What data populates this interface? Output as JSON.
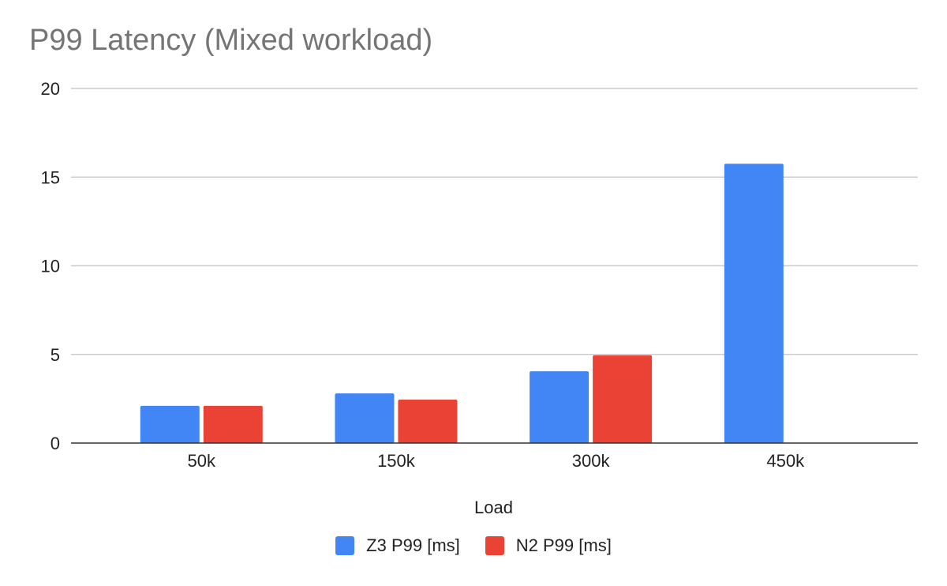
{
  "chart_data": {
    "type": "bar",
    "title": "P99 Latency (Mixed workload)",
    "xlabel": "Load",
    "ylabel": "",
    "categories": [
      "50k",
      "150k",
      "300k",
      "450k"
    ],
    "series": [
      {
        "name": "Z3 P99 [ms]",
        "color": "#4285f4",
        "values": [
          2.1,
          2.8,
          4.05,
          15.75
        ]
      },
      {
        "name": "N2 P99 [ms]",
        "color": "#ea4335",
        "values": [
          2.1,
          2.45,
          4.95,
          null
        ]
      }
    ],
    "ylim": [
      0,
      20
    ],
    "yticks": [
      0,
      5,
      10,
      15,
      20
    ],
    "grid": true,
    "legend_position": "bottom"
  }
}
